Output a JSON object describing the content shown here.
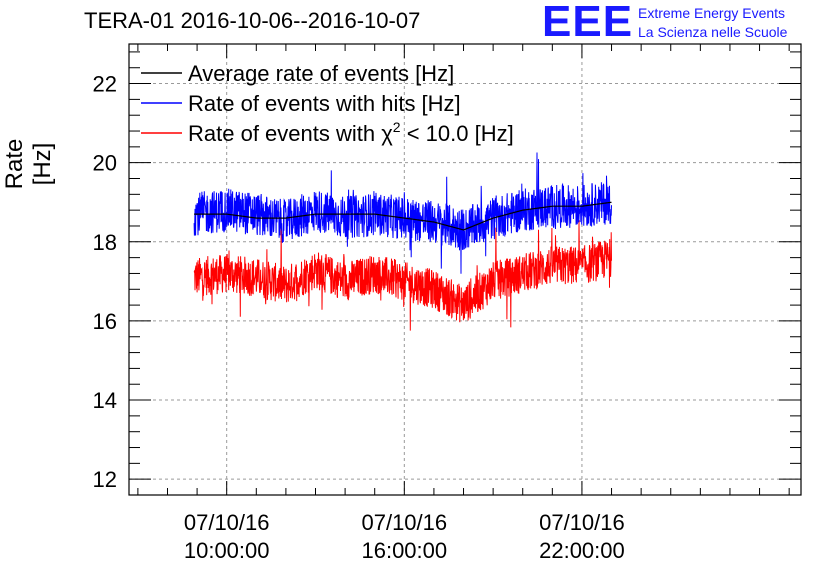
{
  "chart_data": {
    "type": "line",
    "title": "TERA-01 2016-10-06--2016-10-07",
    "ylabel": "Rate [Hz]",
    "xlabel": "",
    "ylim": [
      11.6,
      23.0
    ],
    "y_ticks": [
      12,
      14,
      16,
      18,
      20,
      22
    ],
    "y_tick_labels": [
      "12",
      "14",
      "16",
      "18",
      "20",
      "22"
    ],
    "x_range_hours": [
      6.7,
      29.4
    ],
    "x_ticks_hours": [
      10,
      16,
      22
    ],
    "x_tick_labels": [
      {
        "date": "07/10/16",
        "time": "10:00:00"
      },
      {
        "date": "07/10/16",
        "time": "16:00:00"
      },
      {
        "date": "07/10/16",
        "time": "22:00:00"
      }
    ],
    "grid": true,
    "legend_position": "top-left",
    "series": [
      {
        "name": "Average rate of events [Hz]",
        "color": "#000000",
        "x": [
          8.9,
          10.0,
          11.0,
          12.0,
          13.0,
          14.0,
          15.0,
          16.0,
          17.0,
          18.0,
          19.0,
          20.0,
          21.0,
          22.0,
          23.0
        ],
        "values": [
          18.7,
          18.7,
          18.6,
          18.6,
          18.7,
          18.7,
          18.7,
          18.6,
          18.5,
          18.3,
          18.6,
          18.8,
          18.9,
          18.9,
          19.0
        ]
      },
      {
        "name": "Rate of events with hits [Hz]",
        "color": "#0000ff",
        "x": [
          8.9,
          10.0,
          11.0,
          12.0,
          13.0,
          14.0,
          15.0,
          16.0,
          17.0,
          18.0,
          19.0,
          20.0,
          21.0,
          22.0,
          23.0
        ],
        "values": [
          18.7,
          18.8,
          18.7,
          18.5,
          18.8,
          18.6,
          18.7,
          18.6,
          18.5,
          18.3,
          18.6,
          18.8,
          18.9,
          18.9,
          19.0
        ]
      },
      {
        "name": "Rate of events with χ² < 10.0 [Hz]",
        "color": "#ff0000",
        "x": [
          8.9,
          10.0,
          11.0,
          12.0,
          13.0,
          14.0,
          15.0,
          16.0,
          17.0,
          18.0,
          19.0,
          20.0,
          21.0,
          22.0,
          23.0
        ],
        "values": [
          17.1,
          17.2,
          17.1,
          16.9,
          17.3,
          17.0,
          17.2,
          17.0,
          16.8,
          16.4,
          17.0,
          17.2,
          17.4,
          17.4,
          17.6
        ]
      }
    ]
  },
  "logo": {
    "mark": "EEE",
    "line1": "Extreme Energy Events",
    "line2": "La Scienza nelle Scuole"
  },
  "legend_labels": {
    "avg": "Average rate of events [Hz]",
    "hits": "Rate of events with hits [Hz]",
    "chi_prefix": "Rate of events with ",
    "chi_symbol": "χ",
    "chi_sup": "2",
    "chi_suffix": " < 10.0 [Hz]"
  }
}
